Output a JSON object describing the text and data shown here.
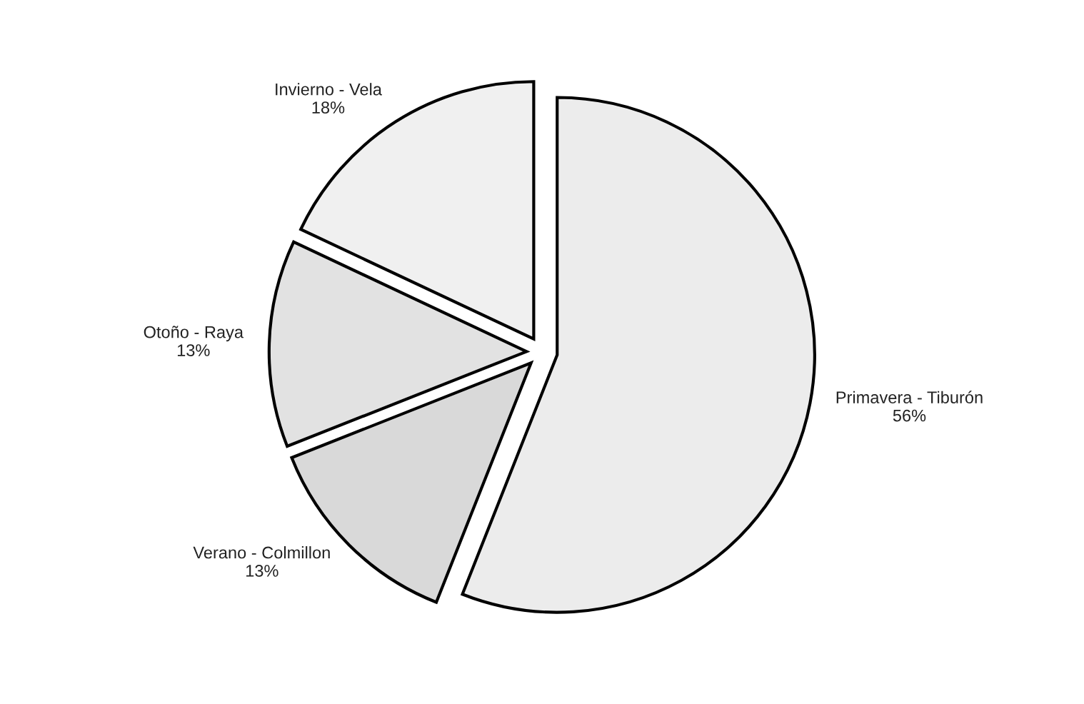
{
  "chart_data": {
    "type": "pie",
    "categories": [
      "Primavera - Tiburón",
      "Verano - Colmillon",
      "Otoño - Raya",
      "Invierno - Vela"
    ],
    "values": [
      56,
      13,
      13,
      18
    ],
    "value_labels": [
      "56%",
      "13%",
      "13%",
      "18%"
    ],
    "colors": [
      "#ececec",
      "#d9d9d9",
      "#e2e2e2",
      "#f0f0f0"
    ]
  }
}
